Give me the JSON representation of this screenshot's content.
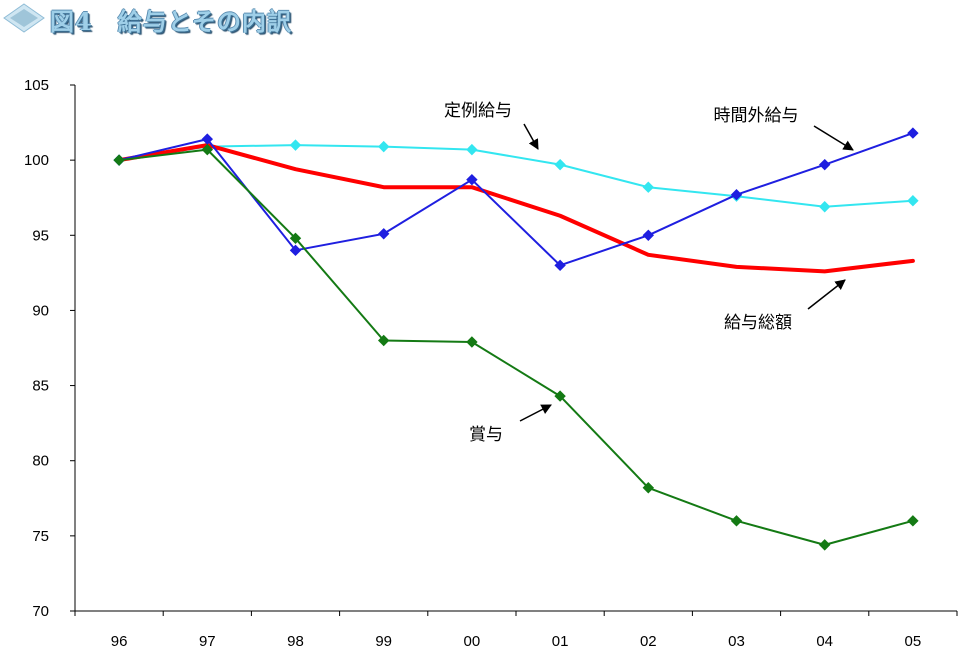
{
  "title": "図4　給与とその内訳",
  "colors": {
    "title_text": "#9fcfe8",
    "logo": "#9fc5d9"
  },
  "chart_data": {
    "type": "line",
    "title": "図4　給与とその内訳",
    "xlabel": "",
    "ylabel": "",
    "categories": [
      "96",
      "97",
      "98",
      "99",
      "00",
      "01",
      "02",
      "03",
      "04",
      "05"
    ],
    "ylim": [
      70,
      105
    ],
    "yticks": [
      70,
      75,
      80,
      85,
      90,
      95,
      100,
      105
    ],
    "grid": false,
    "series": [
      {
        "name": "定例給与",
        "color": "#33e6f0",
        "marker": "diamond",
        "width": 2,
        "values": [
          100.0,
          100.9,
          101.0,
          100.9,
          100.7,
          99.7,
          98.2,
          97.6,
          96.9,
          97.3
        ]
      },
      {
        "name": "給与総額",
        "color": "#ff0000",
        "marker": "none",
        "width": 4,
        "values": [
          100.0,
          101.0,
          99.4,
          98.2,
          98.2,
          96.3,
          93.7,
          92.9,
          92.6,
          93.3
        ]
      },
      {
        "name": "時間外給与",
        "color": "#1f1fe0",
        "marker": "diamond",
        "width": 2,
        "values": [
          100.0,
          101.4,
          94.0,
          95.1,
          98.7,
          93.0,
          95.0,
          97.7,
          99.7,
          101.8
        ]
      },
      {
        "name": "賞与",
        "color": "#147a14",
        "marker": "diamond",
        "width": 2,
        "values": [
          100.0,
          100.7,
          94.8,
          88.0,
          87.9,
          84.3,
          78.2,
          76.0,
          74.4,
          76.0
        ]
      }
    ],
    "annotations": [
      {
        "text": "定例給与",
        "series": "定例給与",
        "placement": "above-01"
      },
      {
        "text": "時間外給与",
        "series": "時間外給与",
        "placement": "above-04"
      },
      {
        "text": "給与総額",
        "series": "給与総額",
        "placement": "below-04"
      },
      {
        "text": "賞与",
        "series": "賞与",
        "placement": "left-01"
      }
    ]
  }
}
